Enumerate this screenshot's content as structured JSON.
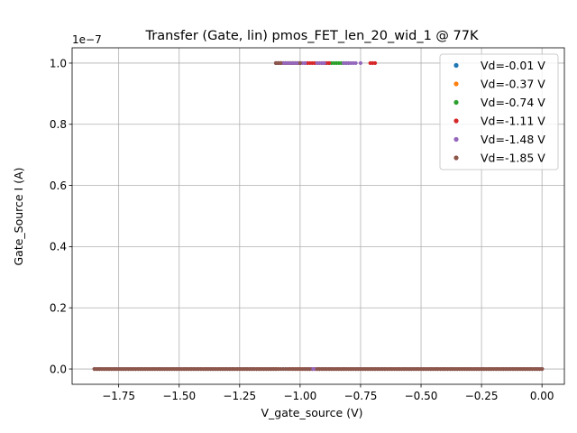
{
  "chart_data": {
    "type": "scatter",
    "title": "Transfer (Gate, lin) pmos_FET_len_20_wid_1 @ 77K",
    "xlabel": "V_gate_source (V)",
    "ylabel": "Gate_Source I (A)",
    "y_offset_label": "1e−7",
    "y_scale": 1e-07,
    "xlim": [
      -1.9425,
      0.0925
    ],
    "ylim": [
      -5e-09,
      1.05e-07
    ],
    "x_ticks": [
      -1.75,
      -1.5,
      -1.25,
      -1.0,
      -0.75,
      -0.5,
      -0.25,
      0.0
    ],
    "x_tick_labels": [
      "−1.75",
      "−1.50",
      "−1.25",
      "−1.00",
      "−0.75",
      "−0.50",
      "−0.25",
      "0.00"
    ],
    "y_ticks": [
      0,
      2e-08,
      4e-08,
      6e-08,
      8e-08,
      1e-07
    ],
    "y_tick_labels": [
      "0.0",
      "0.2",
      "0.4",
      "0.6",
      "0.8",
      "1.0"
    ],
    "grid": true,
    "legend_position": "top-right",
    "series": [
      {
        "name": "Vd=-0.01 V",
        "color": "#1f77b4",
        "low": [
          [
            -1.85,
            -1.1
          ],
          [
            -1.1,
            0.0
          ]
        ],
        "high": [
          [
            -1.1,
            -1.0
          ]
        ]
      },
      {
        "name": "Vd=-0.37 V",
        "color": "#ff7f0e",
        "low": [
          [
            -1.85,
            -1.09
          ],
          [
            -1.02,
            0.0
          ]
        ],
        "high": [
          [
            -1.09,
            -1.0
          ]
        ]
      },
      {
        "name": "Vd=-0.74 V",
        "color": "#2ca02c",
        "low": [
          [
            -1.85,
            -1.1
          ],
          [
            -0.97,
            0.0
          ]
        ],
        "high": [
          [
            -1.1,
            -1.0
          ],
          [
            -0.9,
            -0.84
          ],
          [
            -0.83,
            -0.8
          ]
        ]
      },
      {
        "name": "Vd=-1.11 V",
        "color": "#d62728",
        "low": [
          [
            -1.85,
            -1.1
          ],
          [
            -1.05,
            0.0
          ]
        ],
        "high": [
          [
            -1.1,
            -1.0
          ],
          [
            -0.98,
            -0.88
          ],
          [
            -0.71,
            -0.69
          ]
        ]
      },
      {
        "name": "Vd=-1.48 V",
        "color": "#9467bd",
        "low": [
          [
            -1.85,
            -1.12
          ],
          [
            -0.98,
            0.0
          ]
        ],
        "high": [
          [
            -1.1,
            -0.98
          ],
          [
            -0.93,
            -0.9
          ],
          [
            -0.82,
            -0.77
          ],
          [
            -0.75,
            -0.75
          ]
        ]
      },
      {
        "name": "Vd=-1.85 V",
        "color": "#8c564b",
        "low": [
          [
            -1.85,
            -1.1
          ],
          [
            -1.09,
            -0.96
          ],
          [
            -0.93,
            0.0
          ]
        ],
        "high": [
          [
            -1.1,
            -1.08
          ],
          [
            -1.0,
            -1.0
          ]
        ]
      }
    ]
  }
}
